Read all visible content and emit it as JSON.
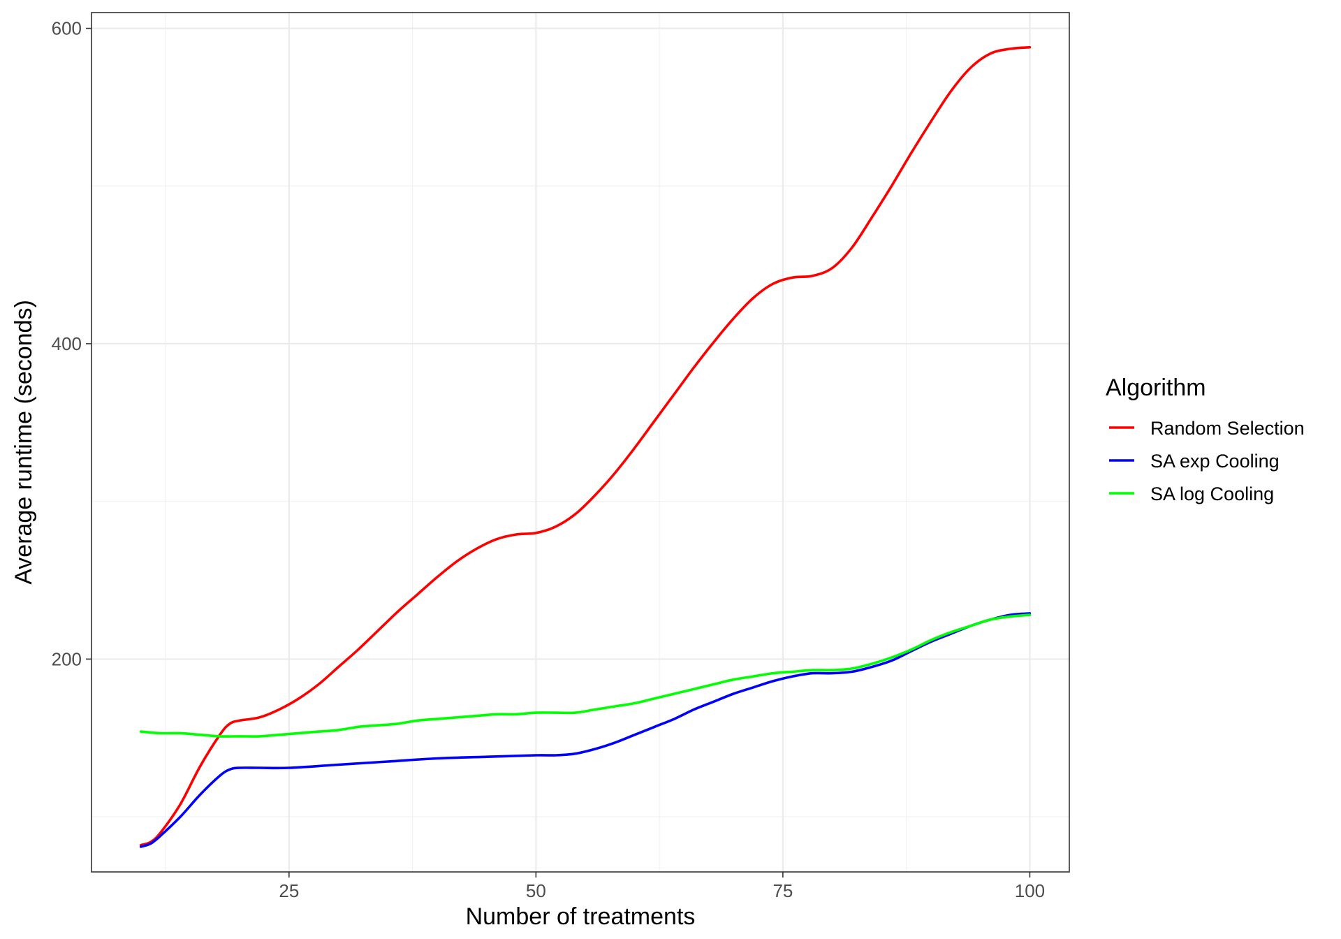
{
  "chart_data": {
    "type": "line",
    "title": "",
    "xlabel": "Number of treatments",
    "ylabel": "Average runtime (seconds)",
    "xlim": [
      5,
      104
    ],
    "ylim": [
      65,
      610
    ],
    "x_ticks": [
      25,
      50,
      75,
      100
    ],
    "x_tick_labels": [
      "25",
      "50",
      "75",
      "100"
    ],
    "x_minor_ticks": [
      12.5,
      37.5,
      62.5,
      87.5
    ],
    "y_ticks": [
      200,
      400,
      600
    ],
    "y_tick_labels": [
      "200",
      "400",
      "600"
    ],
    "y_minor_ticks": [
      100,
      300,
      500
    ],
    "grid": true,
    "legend": {
      "title": "Algorithm",
      "position": "right"
    },
    "series": [
      {
        "name": "Random Selection",
        "color": "#ff0000",
        "x": [
          10,
          11,
          12,
          14,
          16,
          18,
          19,
          20,
          22,
          24,
          26,
          28,
          30,
          32,
          34,
          36,
          38,
          40,
          42,
          44,
          46,
          48,
          50,
          52,
          54,
          56,
          58,
          60,
          62,
          64,
          66,
          68,
          70,
          72,
          74,
          76,
          78,
          80,
          82,
          84,
          86,
          88,
          90,
          92,
          94,
          96,
          98,
          100
        ],
        "y": [
          82,
          84,
          90,
          108,
          132,
          152,
          159,
          161,
          163,
          168,
          175,
          184,
          195,
          206,
          218,
          230,
          241,
          252,
          262,
          270,
          276,
          279,
          280,
          284,
          292,
          304,
          318,
          334,
          351,
          368,
          385,
          401,
          416,
          429,
          438,
          442,
          443,
          448,
          461,
          480,
          500,
          521,
          541,
          560,
          575,
          584,
          587,
          588
        ]
      },
      {
        "name": "SA exp Cooling",
        "color": "#0000ff",
        "x": [
          10,
          11,
          12,
          14,
          16,
          18,
          19,
          20,
          22,
          25,
          30,
          35,
          40,
          45,
          50,
          52,
          54,
          56,
          58,
          60,
          62,
          64,
          66,
          68,
          70,
          72,
          74,
          76,
          78,
          80,
          82,
          84,
          86,
          88,
          90,
          92,
          94,
          96,
          98,
          100
        ],
        "y": [
          81,
          83,
          88,
          100,
          114,
          126,
          130,
          131,
          131,
          131,
          133,
          135,
          137,
          138,
          139,
          139,
          140,
          143,
          147,
          152,
          157,
          162,
          168,
          173,
          178,
          182,
          186,
          189,
          191,
          191,
          192,
          195,
          199,
          205,
          211,
          216,
          221,
          225,
          228,
          229
        ]
      },
      {
        "name": "SA log Cooling",
        "color": "#00ff00",
        "x": [
          10,
          12,
          14,
          16,
          18,
          20,
          22,
          24,
          26,
          28,
          30,
          32,
          34,
          36,
          38,
          40,
          42,
          44,
          46,
          48,
          50,
          52,
          54,
          56,
          58,
          60,
          62,
          64,
          66,
          68,
          70,
          72,
          74,
          76,
          78,
          80,
          82,
          84,
          86,
          88,
          90,
          92,
          94,
          96,
          98,
          100
        ],
        "y": [
          154,
          153,
          153,
          152,
          151,
          151,
          151,
          152,
          153,
          154,
          155,
          157,
          158,
          159,
          161,
          162,
          163,
          164,
          165,
          165,
          166,
          166,
          166,
          168,
          170,
          172,
          175,
          178,
          181,
          184,
          187,
          189,
          191,
          192,
          193,
          193,
          194,
          197,
          201,
          206,
          212,
          217,
          221,
          225,
          227,
          228
        ]
      }
    ]
  }
}
